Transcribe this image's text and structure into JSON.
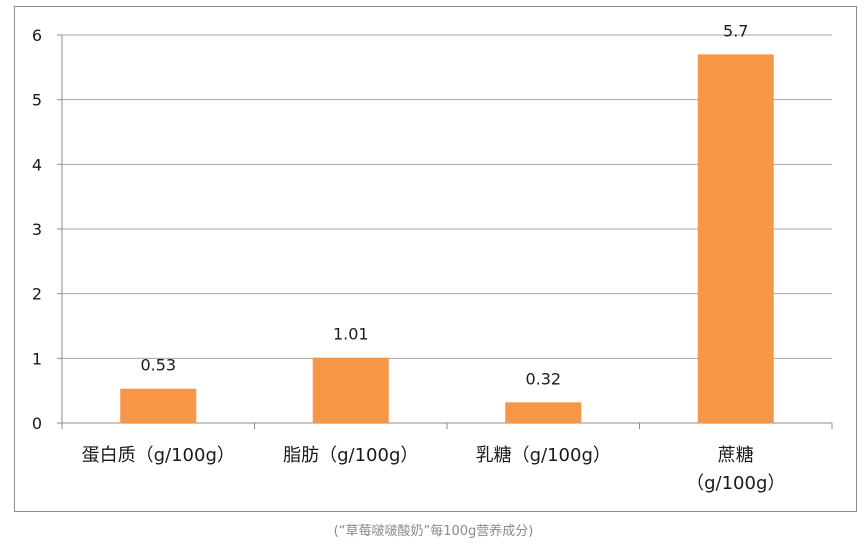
{
  "caption": "(“草莓啵啵酸奶”每100g营养成分)",
  "chart_data": {
    "type": "bar",
    "categories": [
      [
        "蛋白质（g/100g）"
      ],
      [
        "脂肪（g/100g）"
      ],
      [
        "乳糖（g/100g）"
      ],
      [
        "蔗糖",
        "（g/100g）"
      ]
    ],
    "values": [
      0.53,
      1.01,
      0.32,
      5.7
    ],
    "data_labels": [
      "0.53",
      "1.01",
      "0.32",
      "5.7"
    ],
    "y_ticks": [
      "0",
      "1",
      "2",
      "3",
      "4",
      "5",
      "6"
    ],
    "ylim": [
      0,
      6
    ],
    "grid": true,
    "bar_color": "#F79646",
    "grid_color": "#a6a6a6",
    "axis_color": "#8c8c8c",
    "text_color": "#1a1a1a"
  }
}
